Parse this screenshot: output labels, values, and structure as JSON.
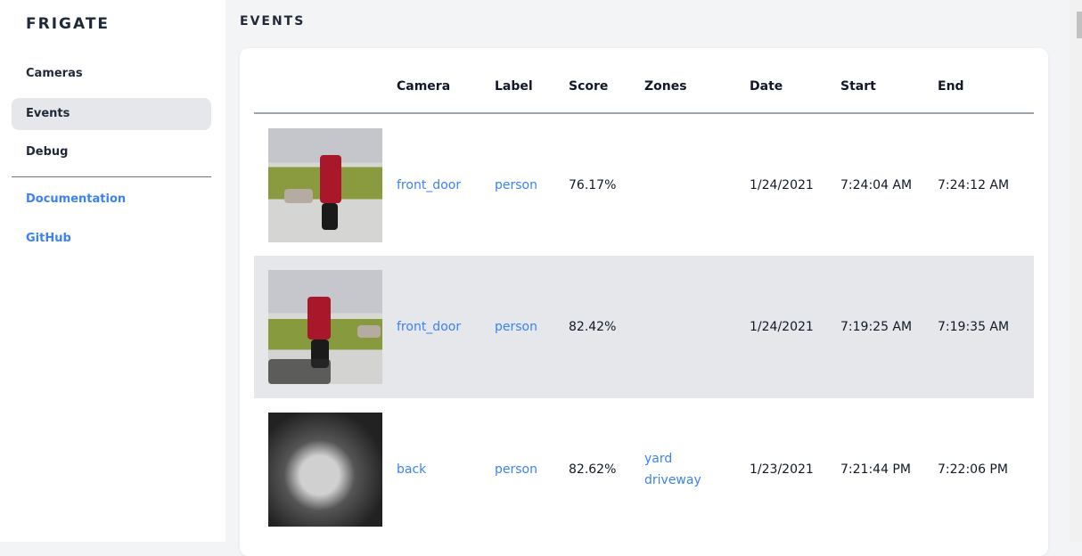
{
  "sidebar": {
    "logo": "FRIGATE",
    "items": [
      {
        "label": "Cameras"
      },
      {
        "label": "Events",
        "active": true
      },
      {
        "label": "Debug"
      }
    ],
    "links": [
      {
        "label": "Documentation"
      },
      {
        "label": "GitHub"
      }
    ]
  },
  "page": {
    "title": "EVENTS"
  },
  "table": {
    "headers": [
      "",
      "Camera",
      "Label",
      "Score",
      "Zones",
      "Date",
      "Start",
      "End"
    ],
    "rows": [
      {
        "camera": "front_door",
        "label": "person",
        "score": "76.17%",
        "zones": [
          "",
          ""
        ],
        "date": "1/24/2021",
        "start": "7:24:04 AM",
        "end": "7:24:12 AM"
      },
      {
        "camera": "front_door",
        "label": "person",
        "score": "82.42%",
        "zones": [
          "",
          ""
        ],
        "date": "1/24/2021",
        "start": "7:19:25 AM",
        "end": "7:19:35 AM"
      },
      {
        "camera": "back",
        "label": "person",
        "score": "82.62%",
        "zones": [
          "yard",
          "driveway"
        ],
        "date": "1/23/2021",
        "start": "7:21:44 PM",
        "end": "7:22:06 PM"
      }
    ]
  },
  "colors": {
    "accent": "#3b82f6",
    "active_bg": "#e5e7eb"
  }
}
